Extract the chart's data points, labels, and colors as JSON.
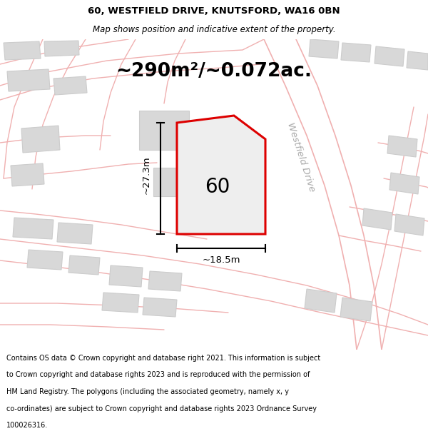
{
  "title_line1": "60, WESTFIELD DRIVE, KNUTSFORD, WA16 0BN",
  "title_line2": "Map shows position and indicative extent of the property.",
  "area_text": "~290m²/~0.072ac.",
  "number_label": "60",
  "dim_vertical": "~27.3m",
  "dim_horizontal": "~18.5m",
  "road_label": "Westfield Drive",
  "footer_lines": [
    "Contains OS data © Crown copyright and database right 2021. This information is subject",
    "to Crown copyright and database rights 2023 and is reproduced with the permission of",
    "HM Land Registry. The polygons (including the associated geometry, namely x, y",
    "co-ordinates) are subject to Crown copyright and database rights 2023 Ordnance Survey",
    "100026316."
  ],
  "map_bg": "#f7f7f7",
  "plot_fill": "#e8e8e8",
  "plot_stroke": "#dd0000",
  "building_fill": "#d8d8d8",
  "building_edge": "#cccccc",
  "line_color_light": "#f0b0b0",
  "road_line_color": "#e09090",
  "white_bg": "#ffffff",
  "road_fill": "#f0f0f0",
  "road_label_color": "#aaaaaa",
  "dim_color": "#000000",
  "text_color": "#000000"
}
